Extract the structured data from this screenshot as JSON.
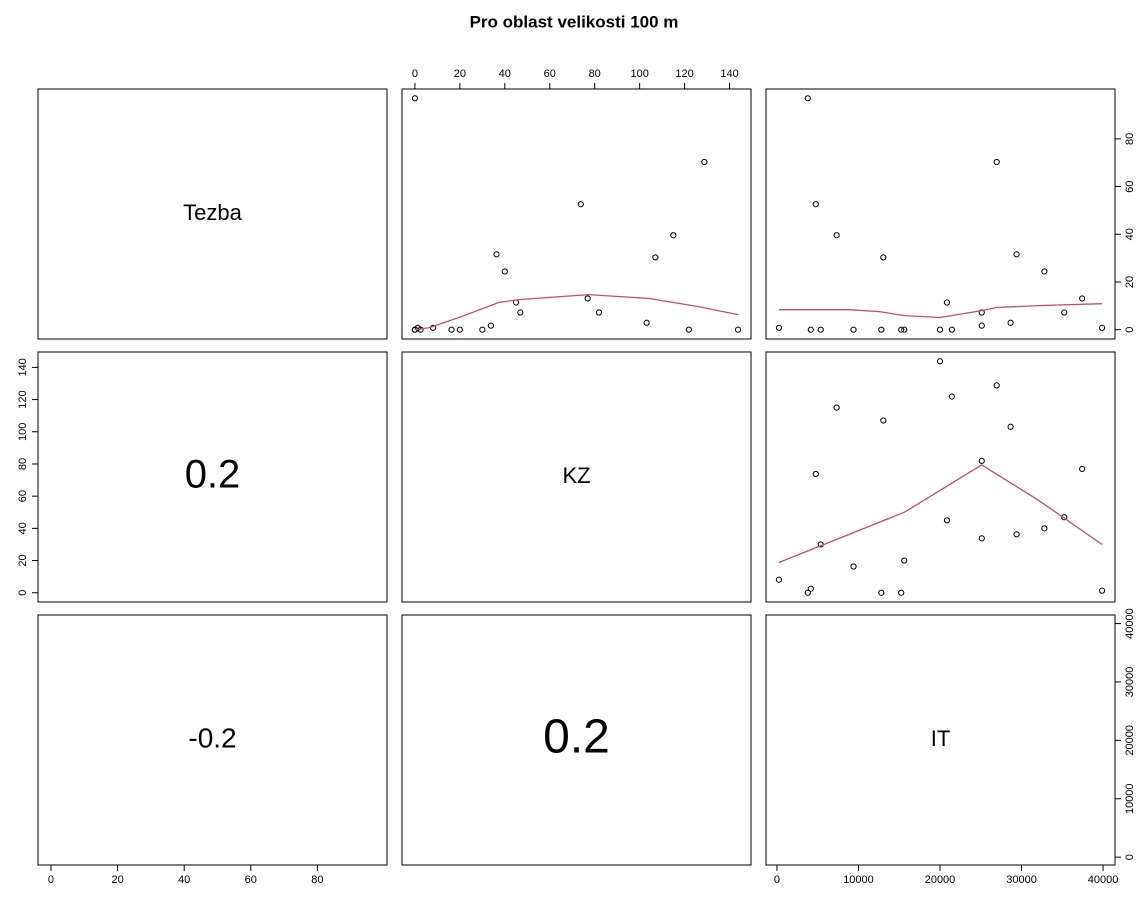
{
  "chart_data": {
    "type": "pairs",
    "title": "Pro oblast velikosti 100 m",
    "variables": [
      {
        "name": "Tezba",
        "values": [
          97,
          52.6,
          39.6,
          30.3,
          70.3,
          31.6,
          24.4,
          11.4,
          13.1,
          7.2,
          7.2,
          2.9,
          1.7,
          0.8,
          0.8,
          0,
          0,
          0,
          0,
          0,
          0,
          0,
          0
        ],
        "lim": [
          -3.9,
          100.9
        ],
        "ticks": [
          0,
          20,
          40,
          60,
          80
        ]
      },
      {
        "name": "KZ",
        "values": [
          0,
          73.8,
          115,
          107,
          128.8,
          36.3,
          40,
          45,
          76.9,
          46.9,
          81.9,
          103.1,
          33.8,
          1.3,
          8.1,
          2.5,
          30,
          16.3,
          0,
          0,
          20,
          143.8,
          121.9
        ],
        "lim": [
          -5.75,
          149.55
        ],
        "ticks": [
          0,
          20,
          40,
          60,
          80,
          100,
          120,
          140
        ]
      },
      {
        "name": "IT",
        "values": [
          3780,
          4760,
          7320,
          13050,
          26950,
          29390,
          32800,
          20850,
          37440,
          35240,
          25120,
          28660,
          25120,
          39880,
          240,
          4150,
          5370,
          9390,
          12800,
          15240,
          15610,
          20000,
          21460
        ],
        "lim": [
          -1346,
          41466
        ],
        "ticks": [
          0,
          10000,
          20000,
          30000,
          40000
        ]
      }
    ],
    "correlations": [
      0.2,
      -0.2,
      0.2
    ],
    "smooth_color": "#c44e6a",
    "smooth": [
      {
        "x": [
          0,
          6.2,
          19.6,
          37.3,
          46.2,
          77.3,
          104,
          126.2,
          144
        ],
        "y": [
          0,
          0.8,
          5.1,
          11.4,
          12.6,
          14.7,
          13.1,
          9.7,
          6.3
        ]
      },
      {
        "x": [
          240,
          8900,
          12560,
          15610,
          20000,
          25120,
          26950,
          32070,
          39880
        ],
        "y": [
          8.4,
          8.4,
          7.6,
          5.9,
          5.1,
          8,
          9.3,
          10.1,
          10.9
        ]
      },
      {
        "x": [
          240,
          15610,
          25120,
          32070,
          39880
        ],
        "y": [
          18.8,
          50,
          79.4,
          57.5,
          30
        ]
      }
    ]
  }
}
